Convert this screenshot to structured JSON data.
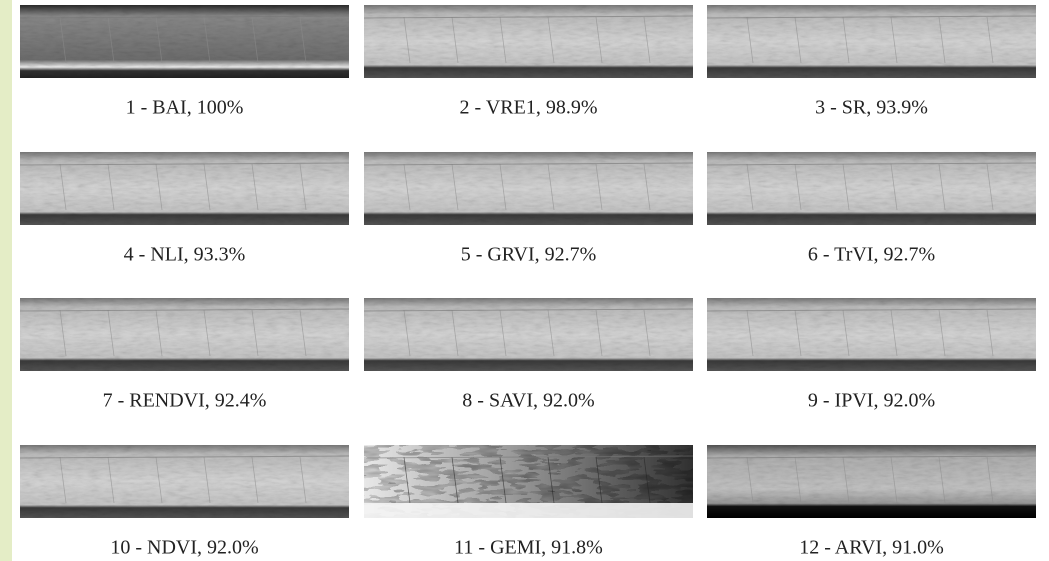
{
  "panels": [
    {
      "caption": "1 - BAI, 100%"
    },
    {
      "caption": "2 - VRE1, 98.9%"
    },
    {
      "caption": "3 - SR, 93.9%"
    },
    {
      "caption": "4 - NLI, 93.3%"
    },
    {
      "caption": "5 - GRVI, 92.7%"
    },
    {
      "caption": "6 - TrVI, 92.7%"
    },
    {
      "caption": "7 - RENDVI, 92.4%"
    },
    {
      "caption": "8 - SAVI, 92.0%"
    },
    {
      "caption": "9 - IPVI, 92.0%"
    },
    {
      "caption": "10 - NDVI, 92.0%"
    },
    {
      "caption": "11 - GEMI, 91.8%"
    },
    {
      "caption": "12 - ARVI, 91.0%"
    }
  ]
}
